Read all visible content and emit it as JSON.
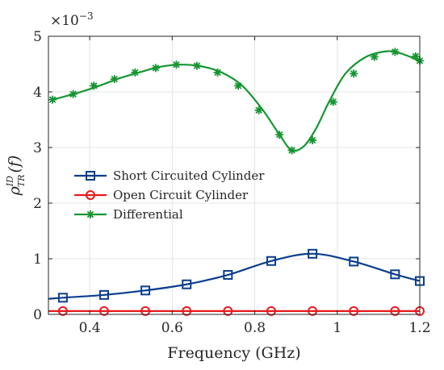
{
  "chart_data": {
    "type": "line",
    "xlabel": "Frequency (GHz)",
    "ylabel": "ρ",
    "ylabel_super": "ID",
    "ylabel_sub": "TR",
    "ylabel_arg": "(f)",
    "y_exponent_base": "×10",
    "y_exponent_power": "−3",
    "xlim": [
      0.3,
      1.2
    ],
    "ylim": [
      0,
      5
    ],
    "xticks": [
      0.4,
      0.6,
      0.8,
      1.0,
      1.2
    ],
    "xtick_labels": [
      "0.4",
      "0.6",
      "0.8",
      "1",
      "1.2"
    ],
    "yticks": [
      0,
      1,
      2,
      3,
      4,
      5
    ],
    "ytick_labels": [
      "0",
      "1",
      "2",
      "3",
      "4",
      "5"
    ],
    "grid": true,
    "legend_position": "middle-left",
    "series": [
      {
        "name": "Short Circuited Cylinder",
        "color": "#0b3e8c",
        "marker": "square",
        "x": [
          0.3,
          0.335,
          0.435,
          0.535,
          0.635,
          0.735,
          0.84,
          0.94,
          1.04,
          1.14,
          1.2
        ],
        "y": [
          0.28,
          0.3,
          0.35,
          0.43,
          0.54,
          0.71,
          0.96,
          1.09,
          0.95,
          0.72,
          0.6
        ],
        "markers_x": [
          0.335,
          0.435,
          0.535,
          0.635,
          0.735,
          0.84,
          0.94,
          1.04,
          1.14,
          1.2
        ],
        "markers_y": [
          0.3,
          0.35,
          0.43,
          0.54,
          0.71,
          0.96,
          1.09,
          0.95,
          0.72,
          0.6
        ]
      },
      {
        "name": "Open Circuit Cylinder",
        "color": "#e8191c",
        "marker": "circle",
        "x": [
          0.3,
          0.335,
          0.435,
          0.535,
          0.635,
          0.735,
          0.84,
          0.94,
          1.04,
          1.14,
          1.2
        ],
        "y": [
          0.06,
          0.06,
          0.06,
          0.06,
          0.06,
          0.06,
          0.06,
          0.06,
          0.06,
          0.06,
          0.06
        ],
        "markers_x": [
          0.335,
          0.435,
          0.535,
          0.635,
          0.735,
          0.84,
          0.94,
          1.04,
          1.14,
          1.2
        ],
        "markers_y": [
          0.06,
          0.06,
          0.06,
          0.06,
          0.06,
          0.06,
          0.06,
          0.06,
          0.06,
          0.06
        ]
      },
      {
        "name": "Differential",
        "color": "#159631",
        "marker": "asterisk",
        "x": [
          0.31,
          0.37,
          0.42,
          0.47,
          0.52,
          0.57,
          0.62,
          0.67,
          0.72,
          0.77,
          0.82,
          0.86,
          0.89,
          0.92,
          0.95,
          0.98,
          1.02,
          1.07,
          1.12,
          1.15,
          1.18,
          1.2
        ],
        "y": [
          3.86,
          3.98,
          4.1,
          4.24,
          4.35,
          4.45,
          4.49,
          4.46,
          4.35,
          4.11,
          3.67,
          3.23,
          2.95,
          3.03,
          3.36,
          3.82,
          4.33,
          4.63,
          4.73,
          4.7,
          4.62,
          4.55
        ],
        "markers_x": [
          0.31,
          0.36,
          0.41,
          0.46,
          0.51,
          0.56,
          0.61,
          0.66,
          0.71,
          0.76,
          0.81,
          0.86,
          0.89,
          0.94,
          0.99,
          1.04,
          1.09,
          1.14,
          1.19,
          1.2
        ],
        "markers_y": [
          3.86,
          3.96,
          4.11,
          4.23,
          4.35,
          4.43,
          4.49,
          4.47,
          4.35,
          4.11,
          3.67,
          3.23,
          2.95,
          3.13,
          3.82,
          4.33,
          4.63,
          4.72,
          4.64,
          4.56
        ]
      }
    ]
  }
}
